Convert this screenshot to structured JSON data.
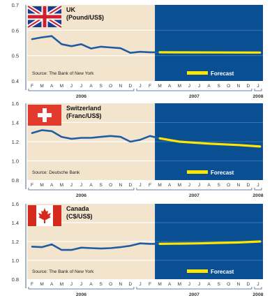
{
  "page": {
    "bottom_fragment": ""
  },
  "chart_data": [
    {
      "type": "line",
      "title": "UK",
      "subtitle": "(Pound/US$)",
      "flag": "uk-flag",
      "source": "Source: The Bank of New York",
      "legend": "Forecast",
      "ylim": [
        0.4,
        0.7
      ],
      "yticks": [
        "0.4",
        "0.5",
        "0.6",
        "0.7"
      ],
      "x_months": [
        "F",
        "M",
        "A",
        "M",
        "J",
        "J",
        "A",
        "S",
        "O",
        "N",
        "D",
        "J",
        "F",
        "M",
        "A",
        "M",
        "J",
        "J",
        "A",
        "S",
        "O",
        "N",
        "D",
        "J"
      ],
      "years": [
        {
          "label": "2006",
          "from": 0,
          "to": 11
        },
        {
          "label": "2007",
          "from": 11,
          "to": 23
        },
        {
          "label": "2008",
          "from": 23,
          "to": 24
        }
      ],
      "forecast_start": 13,
      "series": [
        {
          "kind": "actual",
          "x": [
            0,
            1,
            2,
            3,
            4,
            5,
            6,
            7,
            8,
            9,
            10,
            11,
            12,
            13
          ],
          "y": [
            0.565,
            0.572,
            0.577,
            0.545,
            0.537,
            0.545,
            0.528,
            0.535,
            0.532,
            0.529,
            0.511,
            0.515,
            0.513,
            0.513
          ]
        },
        {
          "kind": "forecast",
          "x": [
            13,
            23.2
          ],
          "y": [
            0.513,
            0.512
          ]
        }
      ],
      "colors": {
        "actual_bg": "#f3e4cd",
        "forecast_bg": "#0b4f93",
        "line": "#1f5ca1",
        "forecast_line": "#ffe600"
      }
    },
    {
      "type": "line",
      "title": "Switzerland",
      "subtitle": "(Franc/US$)",
      "flag": "swiss-flag",
      "source": "Source: Deutsche Bank",
      "legend": "Forecast",
      "ylim": [
        0.8,
        1.6
      ],
      "yticks": [
        "0.8",
        "1.0",
        "1.2",
        "1.4",
        "1.6"
      ],
      "x_months": [
        "F",
        "M",
        "A",
        "M",
        "J",
        "J",
        "A",
        "S",
        "O",
        "N",
        "D",
        "J",
        "F",
        "M",
        "A",
        "M",
        "J",
        "J",
        "A",
        "S",
        "O",
        "N",
        "D",
        "J"
      ],
      "years": [
        {
          "label": "2006",
          "from": 0,
          "to": 11
        },
        {
          "label": "2007",
          "from": 11,
          "to": 23
        },
        {
          "label": "2008",
          "from": 23,
          "to": 24
        }
      ],
      "forecast_start": 13,
      "series": [
        {
          "kind": "actual",
          "x": [
            0,
            1,
            2,
            3,
            4,
            5,
            6,
            7,
            8,
            9,
            10,
            11,
            12,
            13
          ],
          "y": [
            1.29,
            1.32,
            1.31,
            1.25,
            1.23,
            1.24,
            1.24,
            1.25,
            1.26,
            1.25,
            1.2,
            1.22,
            1.26,
            1.235
          ]
        },
        {
          "kind": "forecast",
          "x": [
            13,
            15,
            18,
            21,
            23.2
          ],
          "y": [
            1.235,
            1.2,
            1.18,
            1.165,
            1.15
          ]
        }
      ],
      "colors": {
        "actual_bg": "#f3e4cd",
        "forecast_bg": "#0b4f93",
        "line": "#1f5ca1",
        "forecast_line": "#ffe600"
      }
    },
    {
      "type": "line",
      "title": "Canada",
      "subtitle": "(C$/US$)",
      "flag": "canada-flag",
      "source": "Source: The Bank of New York",
      "legend": "Forecast",
      "ylim": [
        0.8,
        1.6
      ],
      "yticks": [
        "0.8",
        "1.0",
        "1.2",
        "1.4",
        "1.6"
      ],
      "x_months": [
        "F",
        "M",
        "A",
        "M",
        "J",
        "J",
        "A",
        "S",
        "O",
        "N",
        "D",
        "J",
        "F",
        "M",
        "A",
        "M",
        "J",
        "J",
        "A",
        "S",
        "O",
        "N",
        "D",
        "J"
      ],
      "years": [
        {
          "label": "2006",
          "from": 0,
          "to": 11
        },
        {
          "label": "2007",
          "from": 11,
          "to": 23
        },
        {
          "label": "2008",
          "from": 23,
          "to": 24
        }
      ],
      "forecast_start": 13,
      "series": [
        {
          "kind": "actual",
          "x": [
            0,
            1,
            2,
            3,
            4,
            5,
            6,
            7,
            8,
            9,
            10,
            11,
            12,
            13
          ],
          "y": [
            1.145,
            1.14,
            1.17,
            1.11,
            1.11,
            1.135,
            1.13,
            1.125,
            1.13,
            1.14,
            1.155,
            1.18,
            1.175,
            1.175
          ]
        },
        {
          "kind": "forecast",
          "x": [
            13,
            17,
            21,
            23.2
          ],
          "y": [
            1.175,
            1.18,
            1.19,
            1.2
          ]
        }
      ],
      "colors": {
        "actual_bg": "#f3e4cd",
        "forecast_bg": "#0b4f93",
        "line": "#1f5ca1",
        "forecast_line": "#ffe600"
      }
    }
  ]
}
